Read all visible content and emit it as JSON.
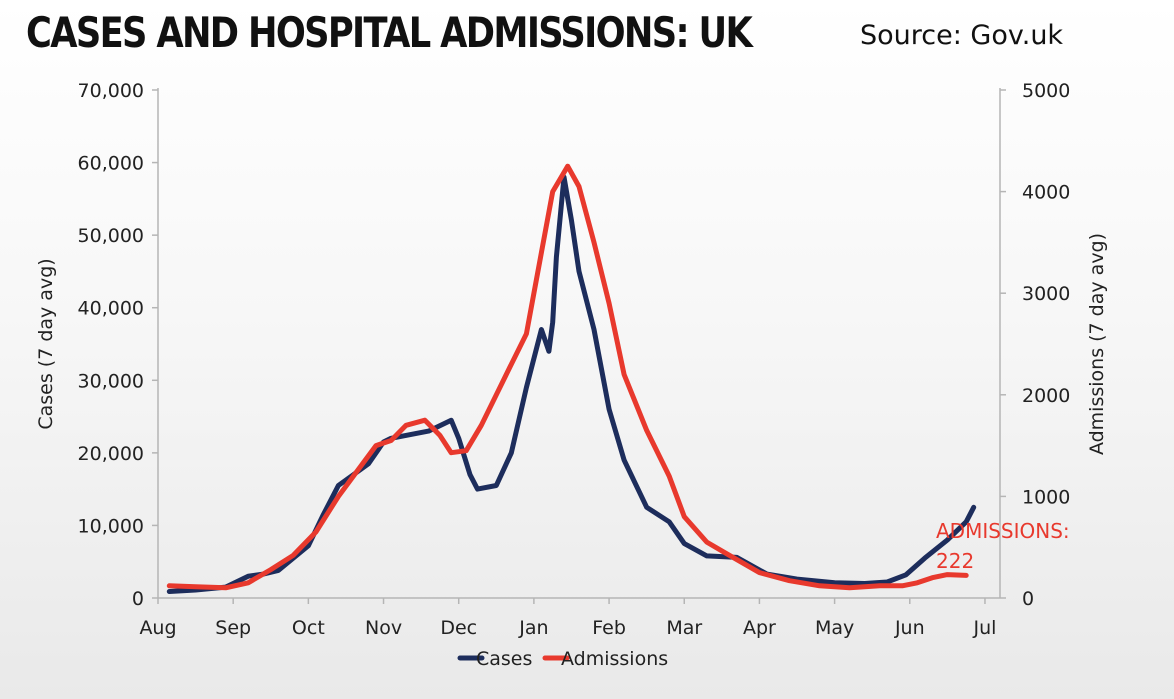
{
  "header": {
    "title": "CASES AND HOSPITAL ADMISSIONS: UK",
    "source": "Source: Gov.uk"
  },
  "colors": {
    "cases": "#1d2d5c",
    "admissions": "#e8392d",
    "axis": "#b5b5b5",
    "text": "#222222"
  },
  "chart_data": {
    "type": "line",
    "title": "CASES AND HOSPITAL ADMISSIONS: UK",
    "xlabel": "",
    "ylabel": "Cases (7 day avg)",
    "y2label": "Admissions (7 day avg)",
    "ylim": [
      0,
      70000
    ],
    "y2lim": [
      0,
      5000
    ],
    "x_ticks": [
      "Aug",
      "Sep",
      "Oct",
      "Nov",
      "Dec",
      "Jan",
      "Feb",
      "Mar",
      "Apr",
      "May",
      "Jun",
      "Jul"
    ],
    "x_units": "month index (0 = Aug, 11 = Jul)",
    "y_ticks": [
      "0",
      "10,000",
      "20,000",
      "30,000",
      "40,000",
      "50,000",
      "60,000",
      "70,000"
    ],
    "y2_ticks": [
      "0",
      "1000",
      "2000",
      "3000",
      "4000",
      "5000"
    ],
    "legend": "bottom-center",
    "grid": false,
    "series": [
      {
        "name": "Cases",
        "axis": "left",
        "x": [
          0.15,
          0.5,
          0.9,
          1.2,
          1.4,
          1.6,
          2.0,
          2.2,
          2.4,
          2.6,
          2.8,
          3.0,
          3.1,
          3.35,
          3.6,
          3.9,
          4.0,
          4.15,
          4.25,
          4.5,
          4.7,
          4.9,
          5.0,
          5.1,
          5.2,
          5.25,
          5.3,
          5.4,
          5.5,
          5.6,
          5.8,
          6.0,
          6.2,
          6.5,
          6.8,
          7.0,
          7.3,
          7.7,
          8.1,
          8.5,
          9.0,
          9.4,
          9.7,
          9.95,
          10.2,
          10.5,
          10.75,
          10.85
        ],
        "values": [
          900,
          1100,
          1500,
          3000,
          3300,
          3800,
          7200,
          11500,
          15500,
          17000,
          18500,
          21500,
          22000,
          22500,
          23000,
          24500,
          22000,
          17000,
          15000,
          15500,
          20000,
          29000,
          33000,
          37000,
          34000,
          38000,
          47000,
          58000,
          52000,
          45000,
          37000,
          26000,
          19000,
          12500,
          10500,
          7500,
          5800,
          5600,
          3300,
          2600,
          2100,
          2000,
          2200,
          3200,
          5500,
          8000,
          10500,
          12500
        ]
      },
      {
        "name": "Admissions",
        "axis": "right",
        "x": [
          0.15,
          0.5,
          0.9,
          1.2,
          1.5,
          1.8,
          2.1,
          2.4,
          2.7,
          2.9,
          3.1,
          3.3,
          3.55,
          3.75,
          3.9,
          4.1,
          4.3,
          4.5,
          4.7,
          4.9,
          5.1,
          5.25,
          5.45,
          5.6,
          5.8,
          6.0,
          6.2,
          6.5,
          6.8,
          7.0,
          7.3,
          7.6,
          8.0,
          8.4,
          8.8,
          9.2,
          9.6,
          9.9,
          10.1,
          10.3,
          10.5,
          10.75
        ],
        "values": [
          120,
          110,
          100,
          150,
          280,
          420,
          650,
          1000,
          1300,
          1500,
          1550,
          1700,
          1750,
          1600,
          1430,
          1450,
          1700,
          2000,
          2300,
          2600,
          3400,
          4000,
          4250,
          4050,
          3500,
          2900,
          2200,
          1650,
          1200,
          800,
          550,
          420,
          250,
          170,
          120,
          100,
          120,
          120,
          150,
          200,
          230,
          222
        ]
      }
    ],
    "annotation": {
      "line1": "ADMISSIONS:",
      "line2": "222",
      "x": 10.75,
      "y2": 222
    }
  }
}
